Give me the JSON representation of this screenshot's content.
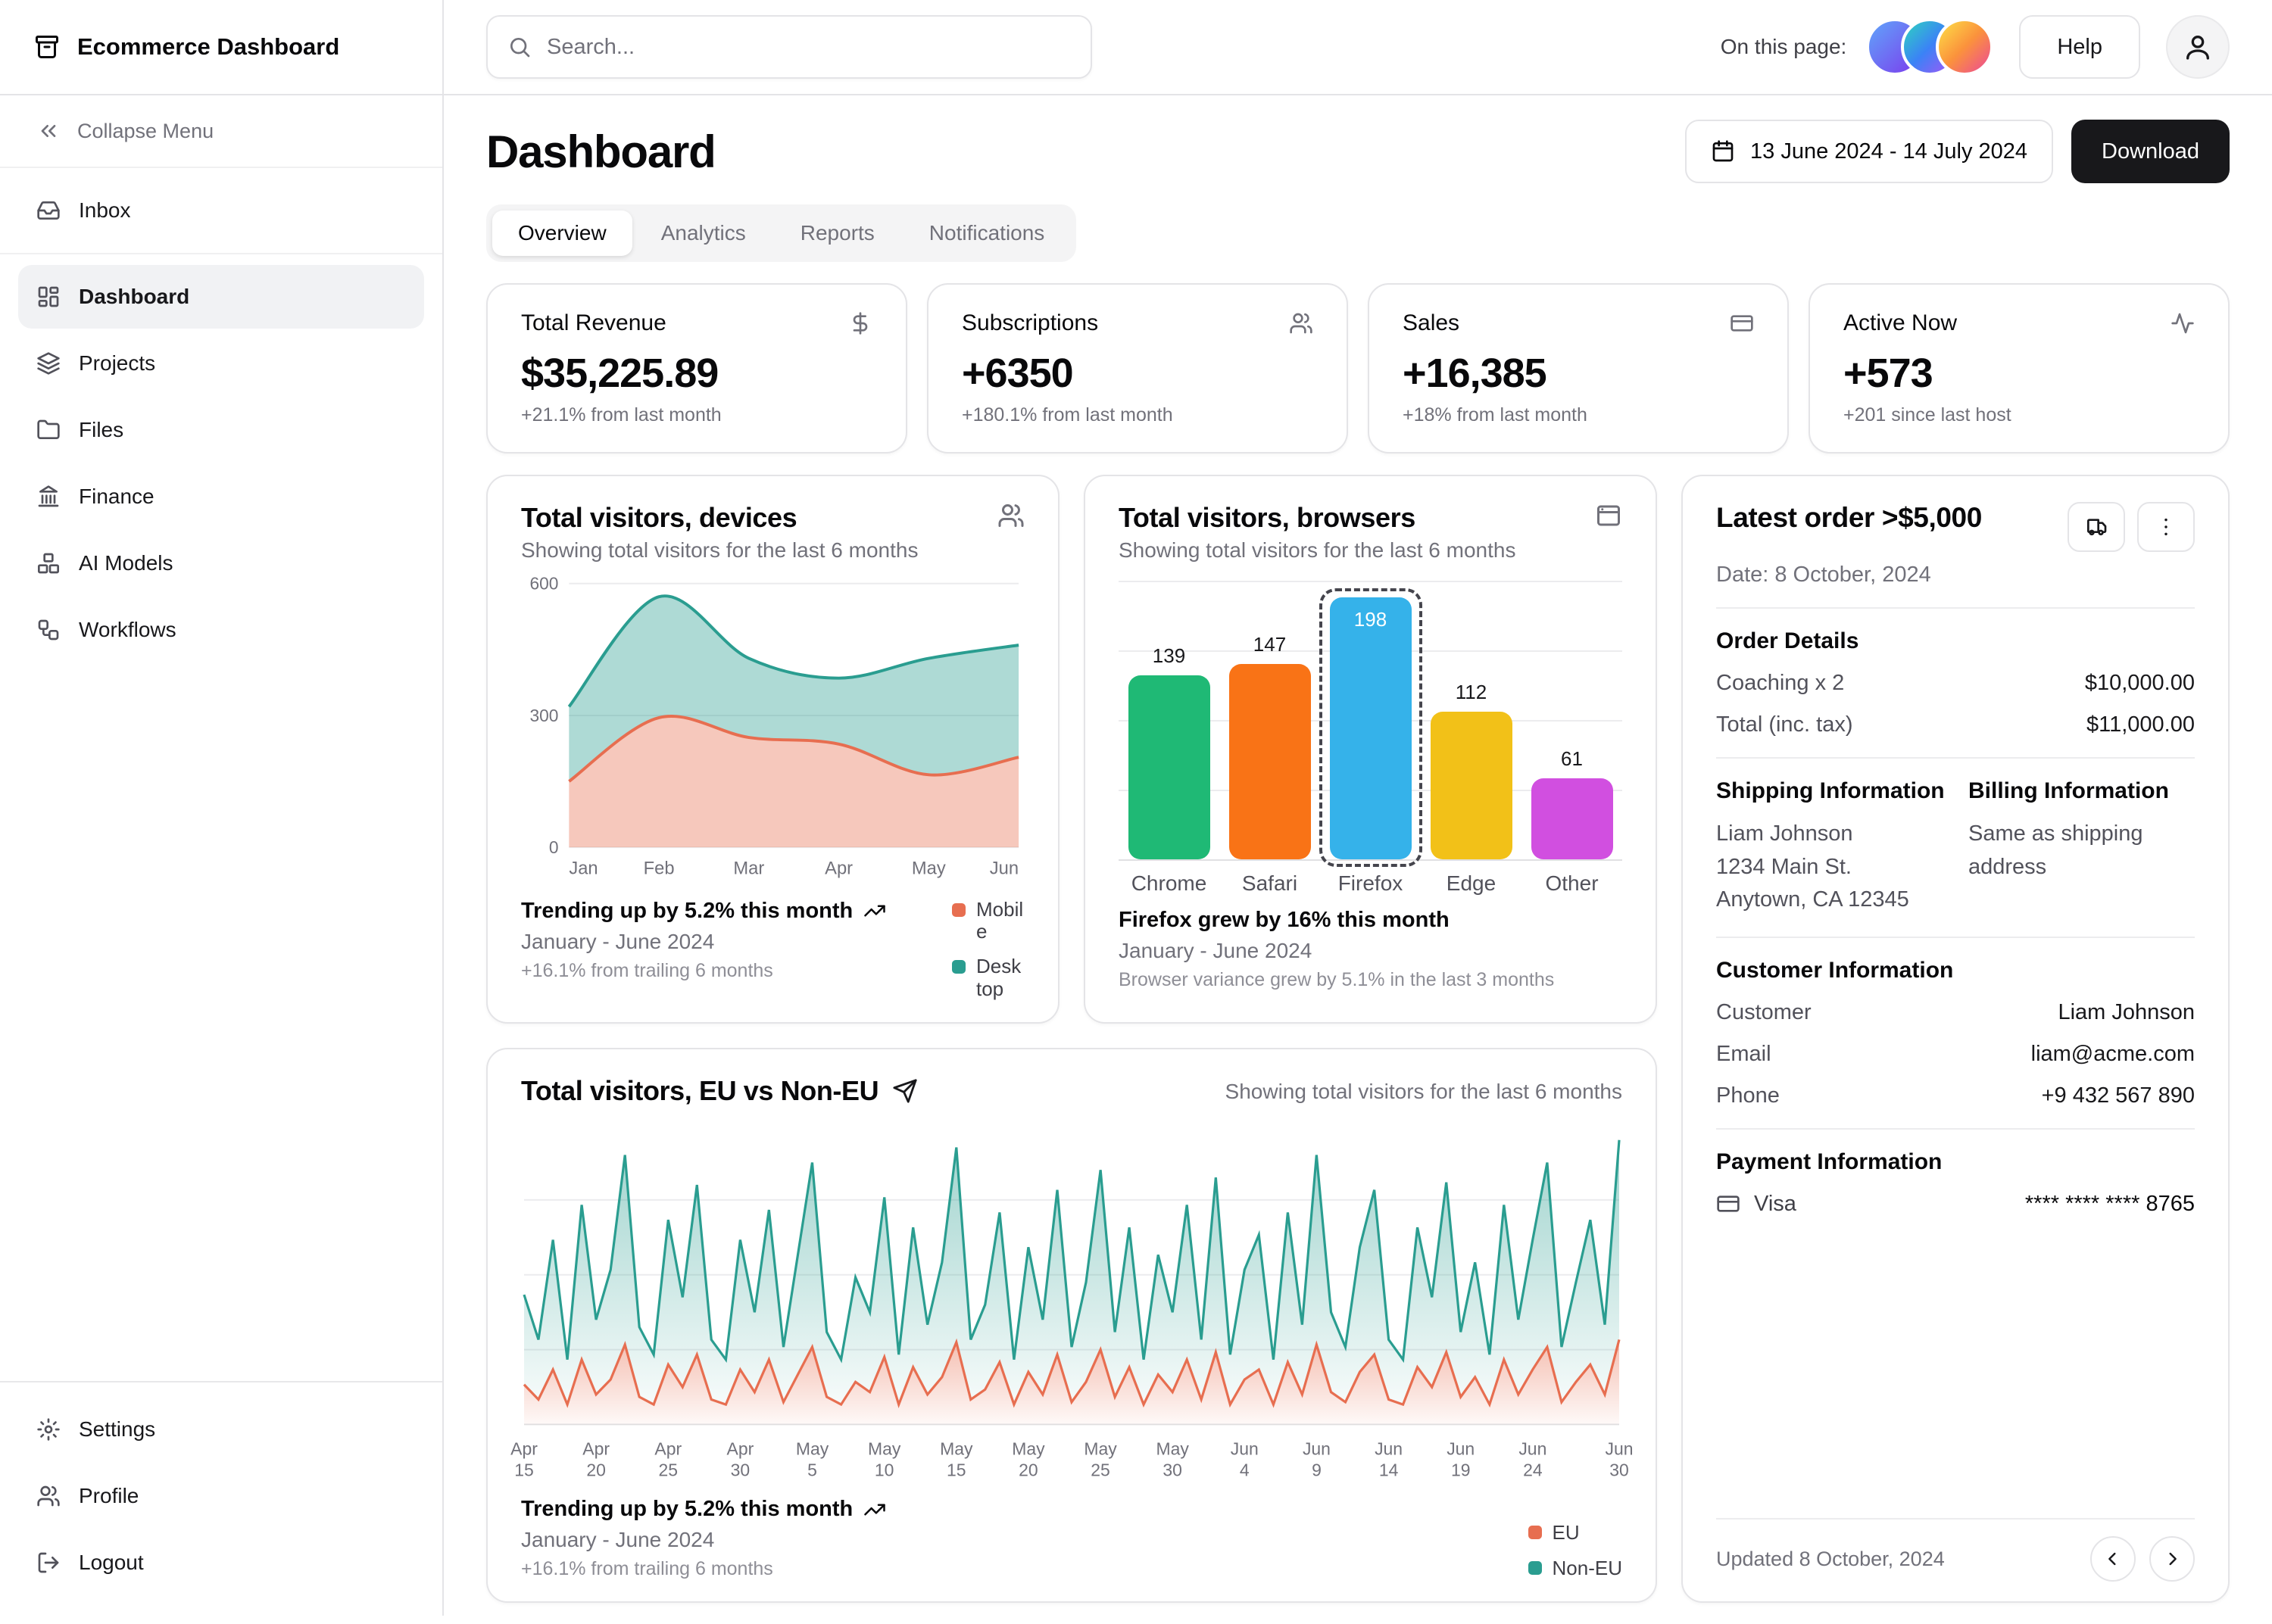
{
  "app": {
    "title": "Ecommerce Dashboard"
  },
  "topbar": {
    "search_placeholder": "Search...",
    "on_this_page": "On this page:",
    "help_label": "Help",
    "avatar_colors": [
      [
        "#60a5fa",
        "#7c3aed"
      ],
      [
        "#2dd4bf",
        "#3b82f6",
        "#a855f7"
      ],
      [
        "#fde047",
        "#fb923c",
        "#ec4899"
      ]
    ]
  },
  "sidebar": {
    "collapse_label": "Collapse Menu",
    "top_items": [
      {
        "label": "Inbox",
        "icon": "inbox"
      }
    ],
    "items": [
      {
        "label": "Dashboard",
        "icon": "dashboard",
        "active": true
      },
      {
        "label": "Projects",
        "icon": "projects"
      },
      {
        "label": "Files",
        "icon": "files"
      },
      {
        "label": "Finance",
        "icon": "finance"
      },
      {
        "label": "AI Models",
        "icon": "ai-models"
      },
      {
        "label": "Workflows",
        "icon": "workflows"
      }
    ],
    "footer_items": [
      {
        "label": "Settings",
        "icon": "settings"
      },
      {
        "label": "Profile",
        "icon": "profile"
      },
      {
        "label": "Logout",
        "icon": "logout"
      }
    ]
  },
  "header": {
    "title": "Dashboard",
    "date_range": "13 June 2024 - 14 July 2024",
    "download_label": "Download"
  },
  "tabs": [
    "Overview",
    "Analytics",
    "Reports",
    "Notifications"
  ],
  "active_tab": 0,
  "stats": [
    {
      "label": "Total Revenue",
      "icon": "dollar",
      "value": "$35,225.89",
      "change": "+21.1% from last month"
    },
    {
      "label": "Subscriptions",
      "icon": "users",
      "value": "+6350",
      "change": "+180.1% from last month"
    },
    {
      "label": "Sales",
      "icon": "credit-card",
      "value": "+16,385",
      "change": "+18% from last month"
    },
    {
      "label": "Active Now",
      "icon": "activity",
      "value": "+573",
      "change": "+201 since last host"
    }
  ],
  "chart_data": [
    {
      "id": "devices",
      "type": "area",
      "title": "Total visitors, devices",
      "subtitle": "Showing total visitors for the last 6 months",
      "categories": [
        "Jan",
        "Feb",
        "Mar",
        "Apr",
        "May",
        "Jun"
      ],
      "series": [
        {
          "name": "Mobile",
          "color": "#e76e50",
          "values": [
            150,
            295,
            250,
            235,
            165,
            205
          ]
        },
        {
          "name": "Desktop",
          "color": "#2a9d90",
          "values": [
            170,
            275,
            180,
            150,
            265,
            255
          ]
        }
      ],
      "stacked": true,
      "smooth": true,
      "grid": true,
      "ylim": [
        0,
        600
      ],
      "yticks": [
        0,
        300,
        600
      ],
      "legend_position": "right",
      "footer": {
        "trend": "Trending up by 5.2% this month",
        "period": "January - June 2024",
        "note": "+16.1% from trailing 6 months"
      }
    },
    {
      "id": "browsers",
      "type": "bar",
      "title": "Total visitors, browsers",
      "subtitle": "Showing total visitors for the last 6 months",
      "categories": [
        "Chrome",
        "Safari",
        "Firefox",
        "Edge",
        "Other"
      ],
      "values": [
        139,
        147,
        198,
        112,
        61
      ],
      "colors": [
        "#1fb975",
        "#f97316",
        "#35b2ea",
        "#f2c118",
        "#d14fe0"
      ],
      "highlight_index": 2,
      "highlight_label": "198",
      "ylim": [
        0,
        210
      ],
      "grid": true,
      "footer": {
        "trend": "Firefox grew by 16% this month",
        "period": "January - June 2024",
        "note": "Browser variance grew by 5.1% in the last 3 months"
      }
    },
    {
      "id": "eu",
      "type": "area",
      "title": "Total visitors, EU vs Non-EU",
      "subtitle": "Showing total visitors for the last 6 months",
      "stacked": true,
      "smooth": false,
      "gradient": true,
      "grid": true,
      "ylim": [
        0,
        600
      ],
      "tick_labels": [
        "Apr 15",
        "Apr 20",
        "Apr 25",
        "Apr 30",
        "May 5",
        "May 10",
        "May 15",
        "May 20",
        "May 25",
        "May 30",
        "Jun 4",
        "Jun 9",
        "Jun 14",
        "Jun 19",
        "Jun 24",
        "Jun 30"
      ],
      "tick_indices": [
        0,
        5,
        10,
        15,
        20,
        25,
        30,
        35,
        40,
        45,
        50,
        55,
        60,
        65,
        70,
        76
      ],
      "series": [
        {
          "name": "EU",
          "color": "#e76e50",
          "values": [
            80,
            50,
            110,
            40,
            130,
            60,
            90,
            160,
            55,
            40,
            120,
            75,
            140,
            50,
            40,
            110,
            65,
            130,
            45,
            100,
            155,
            55,
            40,
            85,
            65,
            135,
            40,
            115,
            60,
            95,
            165,
            50,
            70,
            125,
            40,
            105,
            60,
            140,
            45,
            85,
            150,
            55,
            115,
            40,
            100,
            65,
            130,
            50,
            145,
            40,
            90,
            110,
            40,
            125,
            60,
            160,
            65,
            45,
            105,
            140,
            50,
            40,
            115,
            75,
            145,
            55,
            95,
            40,
            130,
            60,
            110,
            155,
            45,
            85,
            120,
            60,
            170
          ]
        },
        {
          "name": "Non-EU",
          "color": "#2a9d90",
          "values": [
            180,
            120,
            260,
            90,
            310,
            150,
            220,
            380,
            140,
            100,
            290,
            180,
            340,
            120,
            90,
            260,
            160,
            300,
            110,
            240,
            370,
            130,
            90,
            210,
            160,
            320,
            100,
            280,
            140,
            230,
            390,
            120,
            170,
            300,
            90,
            250,
            150,
            330,
            110,
            200,
            360,
            130,
            280,
            90,
            240,
            160,
            310,
            120,
            350,
            100,
            220,
            270,
            90,
            300,
            140,
            380,
            160,
            110,
            250,
            330,
            120,
            90,
            280,
            180,
            340,
            130,
            230,
            100,
            310,
            150,
            260,
            370,
            110,
            200,
            290,
            140,
            400
          ]
        }
      ],
      "legend_position": "bottom-right",
      "footer": {
        "trend": "Trending up by 5.2% this month",
        "period": "January - June 2024",
        "note": "+16.1% from trailing 6 months"
      }
    }
  ],
  "order_card": {
    "title": "Latest order >$5,000",
    "date": "Date: 8 October, 2024",
    "order_details": {
      "heading": "Order Details",
      "rows": [
        {
          "label": "Coaching x 2",
          "value": "$10,000.00"
        },
        {
          "label": "Total (inc. tax)",
          "value": "$11,000.00"
        }
      ]
    },
    "shipping": {
      "heading": "Shipping Information",
      "line1": "Liam Johnson",
      "line2": "1234 Main St.",
      "line3": "Anytown, CA 12345"
    },
    "billing": {
      "heading": "Billing Information",
      "text": "Same as shipping address"
    },
    "customer": {
      "heading": "Customer Information",
      "rows": [
        {
          "label": "Customer",
          "value": "Liam Johnson"
        },
        {
          "label": "Email",
          "value": "liam@acme.com"
        },
        {
          "label": "Phone",
          "value": "+9 432 567 890"
        }
      ]
    },
    "payment": {
      "heading": "Payment Information",
      "method": "Visa",
      "number": "**** **** **** 8765"
    },
    "updated": "Updated 8 October, 2024"
  }
}
